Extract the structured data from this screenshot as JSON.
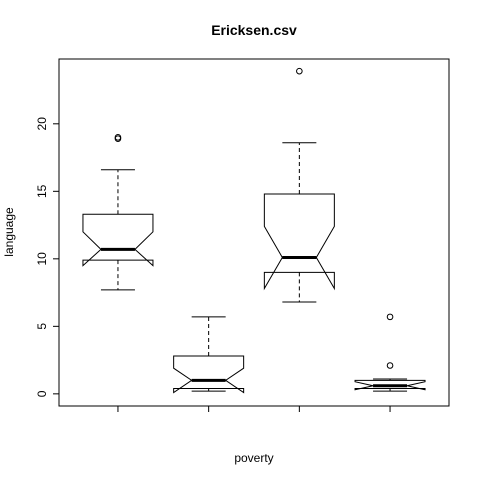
{
  "chart_data": {
    "type": "boxplot",
    "notched": true,
    "title": "Ericksen.csv",
    "xlabel": "poverty",
    "ylabel": "language",
    "ylim": [
      -0.9,
      24.8
    ],
    "yticks": [
      0,
      5,
      10,
      15,
      20
    ],
    "grid": false,
    "boxes": [
      {
        "q1": 9.9,
        "median": 10.7,
        "q3": 13.3,
        "whisker_low": 7.7,
        "whisker_high": 16.6,
        "notch_low": 9.5,
        "notch_high": 12.0,
        "outliers": [
          18.9,
          19.0
        ]
      },
      {
        "q1": 0.4,
        "median": 1.0,
        "q3": 2.8,
        "whisker_low": 0.2,
        "whisker_high": 5.7,
        "notch_low": 0.1,
        "notch_high": 1.9,
        "outliers": []
      },
      {
        "q1": 9.0,
        "median": 10.1,
        "q3": 14.8,
        "whisker_low": 6.8,
        "whisker_high": 18.6,
        "notch_low": 7.8,
        "notch_high": 12.4,
        "outliers": [
          23.9
        ]
      },
      {
        "q1": 0.4,
        "median": 0.6,
        "q3": 1.0,
        "whisker_low": 0.2,
        "whisker_high": 1.1,
        "notch_low": 0.3,
        "notch_high": 0.9,
        "outliers": [
          2.1,
          5.7
        ]
      }
    ]
  }
}
